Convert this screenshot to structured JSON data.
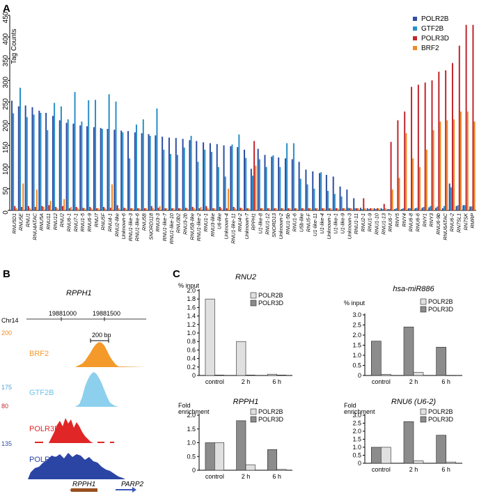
{
  "colors": {
    "POLR2B": "#2e4fa3",
    "GTF2B": "#2b8fc9",
    "POLR3D": "#c0282d",
    "BRF2": "#f08a24",
    "c_gray_light": "#e0e0e0",
    "c_gray_dark": "#8c8c8c",
    "track_brf2": "#f39a2b",
    "track_gtf2b": "#8dd0ee",
    "track_polr3d": "#e02626",
    "track_polr2b": "#2b45a5"
  },
  "panelA": {
    "label": "A",
    "chart_data": {
      "type": "bar",
      "ylabel": "Tag Counts",
      "ylim": [
        0,
        450
      ],
      "yticks": [
        0,
        50,
        100,
        150,
        200,
        250,
        300,
        350,
        400,
        450
      ],
      "categories": [
        "RNU5D1",
        "RNU5E",
        "RNU1",
        "RNU4ATAC",
        "RNU5A",
        "RNU11",
        "RNU12",
        "RNU2",
        "RNU6-1",
        "RNU7-1",
        "RNU1-5",
        "RNU6-9",
        "RNU7",
        "RNU5F",
        "RNU4-1",
        "RNU2-like",
        "Unknown-6",
        "RNU1-like-3",
        "RNU1-like-6",
        "RNU5B",
        "SNORD118",
        "RNU3-3",
        "RNU1-like-7",
        "RNU1-like-10",
        "RNU3b2",
        "RNU3-2b",
        "RNU5B-like",
        "RNU1-like-2",
        "RNU1-1",
        "RNU3-like",
        "U6-like",
        "Unknown-4",
        "RNU1-like-11",
        "RNU4-2",
        "Unknown-7",
        "RPPH1",
        "U1-like-8",
        "RNU1-12",
        "SNORD13",
        "Unknown-2",
        "RNU1-5b",
        "RNU1-6",
        "U5b-like",
        "RNU5-F",
        "U1-like-11",
        "U1-like-4",
        "Unknown-1",
        "U1-like-1",
        "U1-like-9",
        "Unknown-3",
        "RNU1-11",
        "RNU2-1",
        "RNU1-9",
        "RNU1-10",
        "RNU1-13",
        "RNU6-7",
        "RNY5",
        "RNY4",
        "RNU6-8",
        "RNU6-6",
        "RNY1",
        "RNY3",
        "RNU6-9b",
        "RNU6ATAC",
        "RNU6-2",
        "RN7SL1",
        "RN7SK",
        "RMRP"
      ],
      "series": [
        {
          "name": "POLR2B",
          "values": [
            253,
            240,
            242,
            238,
            230,
            225,
            218,
            208,
            202,
            200,
            196,
            194,
            192,
            190,
            188,
            186,
            184,
            183,
            180,
            178,
            176,
            173,
            170,
            168,
            167,
            165,
            162,
            160,
            157,
            155,
            153,
            150,
            148,
            146,
            140,
            96,
            142,
            128,
            124,
            122,
            120,
            118,
            112,
            94,
            90,
            86,
            82,
            78,
            55,
            48,
            28,
            6,
            5,
            5,
            5,
            3,
            3,
            3,
            5,
            5,
            6,
            7,
            6,
            5,
            62,
            10,
            12,
            9
          ]
        },
        {
          "name": "GTF2B",
          "values": [
            224,
            283,
            215,
            221,
            225,
            185,
            248,
            240,
            210,
            273,
            205,
            254,
            255,
            188,
            268,
            251,
            180,
            120,
            198,
            210,
            172,
            235,
            140,
            130,
            128,
            145,
            172,
            112,
            140,
            135,
            100,
            78,
            152,
            175,
            121,
            80,
            118,
            100,
            127,
            100,
            155,
            155,
            73,
            60,
            50,
            88,
            45,
            38,
            32,
            6,
            5,
            3,
            3,
            3,
            3,
            3,
            5,
            5,
            5,
            6,
            8,
            10,
            9,
            10,
            53,
            12,
            12,
            9
          ]
        },
        {
          "name": "POLR3D",
          "values": [
            10,
            8,
            10,
            8,
            10,
            12,
            8,
            10,
            5,
            8,
            6,
            8,
            5,
            8,
            6,
            12,
            6,
            5,
            5,
            5,
            10,
            6,
            5,
            5,
            5,
            6,
            8,
            5,
            10,
            5,
            8,
            5,
            8,
            6,
            5,
            160,
            5,
            5,
            5,
            5,
            5,
            5,
            5,
            5,
            5,
            5,
            5,
            5,
            5,
            5,
            5,
            28,
            5,
            5,
            15,
            158,
            208,
            228,
            285,
            290,
            295,
            300,
            320,
            323,
            340,
            380,
            428,
            428
          ]
        },
        {
          "name": "BRF2",
          "values": [
            5,
            62,
            5,
            48,
            8,
            22,
            5,
            26,
            8,
            5,
            5,
            5,
            5,
            5,
            60,
            5,
            5,
            5,
            5,
            5,
            5,
            10,
            5,
            5,
            5,
            5,
            5,
            8,
            5,
            5,
            5,
            50,
            5,
            5,
            5,
            103,
            5,
            5,
            5,
            5,
            5,
            5,
            5,
            5,
            5,
            5,
            5,
            5,
            5,
            5,
            5,
            5,
            5,
            5,
            5,
            48,
            75,
            178,
            120,
            100,
            140,
            185,
            205,
            208,
            210,
            228,
            228,
            205
          ]
        }
      ]
    }
  },
  "panelB": {
    "label": "B",
    "title": "RPPH1",
    "chr": "Chr14",
    "coord1": "19881000",
    "coord2": "19881500",
    "scalebar": "200 bp",
    "tracks": [
      {
        "name": "BRF2",
        "max": "200"
      },
      {
        "name": "GTF2B",
        "max": "175"
      },
      {
        "name": "POLR3D",
        "max": "80"
      },
      {
        "name": "POLR2B",
        "max": "135"
      }
    ],
    "gene1": "RPPH1",
    "gene2": "PARP2"
  },
  "panelC": {
    "label": "C",
    "chart_data": [
      {
        "type": "bar",
        "title": "RNU2",
        "ylabel": "% input",
        "ylim": [
          0,
          2.0
        ],
        "yticks": [
          "0",
          "0.2",
          "0.4",
          "0.6",
          "0.8",
          "1.0",
          "1.2",
          "1.4",
          "1.6",
          "1.8",
          "2.0"
        ],
        "categories": [
          "control",
          "2 h",
          "6 h"
        ],
        "series": [
          {
            "name": "POLR2B",
            "values": [
              1.8,
              0.8,
              0.03
            ]
          },
          {
            "name": "POLR3D",
            "values": [
              0.01,
              0.01,
              0.01
            ]
          }
        ],
        "legend": [
          "POLR2B",
          "POLR3D"
        ]
      },
      {
        "type": "bar",
        "title": "hsa-miR886",
        "ylabel": "% input",
        "ylim": [
          0,
          3.0
        ],
        "yticks": [
          "0",
          "0.5",
          "1.0",
          "1.5",
          "2.0",
          "2.5",
          "3.0"
        ],
        "categories": [
          "control",
          "2 h",
          "6 h"
        ],
        "series": [
          {
            "name": "POLR3D",
            "values": [
              1.7,
              2.4,
              1.4
            ]
          },
          {
            "name": "POLR2B",
            "values": [
              0.06,
              0.15,
              0.01
            ]
          }
        ],
        "legend": [
          "POLR2B",
          "POLR3D"
        ]
      },
      {
        "type": "bar",
        "title": "RPPH1",
        "ylabel": "Fold enrichment",
        "ylim": [
          0,
          2.0
        ],
        "yticks": [
          "0",
          "0.5",
          "1.0",
          "1.5",
          "2.0"
        ],
        "categories": [
          "control",
          "2 h",
          "6 h"
        ],
        "series": [
          {
            "name": "POLR3D",
            "values": [
              1.0,
              1.8,
              0.75
            ]
          },
          {
            "name": "POLR2B",
            "values": [
              1.0,
              0.2,
              0.03
            ]
          }
        ],
        "legend": [
          "POLR2B",
          "POLR3D"
        ]
      },
      {
        "type": "bar",
        "title": "RNU6 (U6-2)",
        "ylabel": "Fold enrichment",
        "ylim": [
          0,
          3.0
        ],
        "yticks": [
          "0",
          "0.5",
          "1.0",
          "1.5",
          "2.0",
          "2.5",
          "3.0"
        ],
        "categories": [
          "control",
          "2 h",
          "6 h"
        ],
        "series": [
          {
            "name": "POLR3D",
            "values": [
              1.0,
              2.6,
              1.75
            ]
          },
          {
            "name": "POLR2B",
            "values": [
              1.0,
              0.15,
              0.08
            ]
          }
        ],
        "legend": [
          "POLR2B",
          "POLR3D"
        ]
      }
    ]
  }
}
